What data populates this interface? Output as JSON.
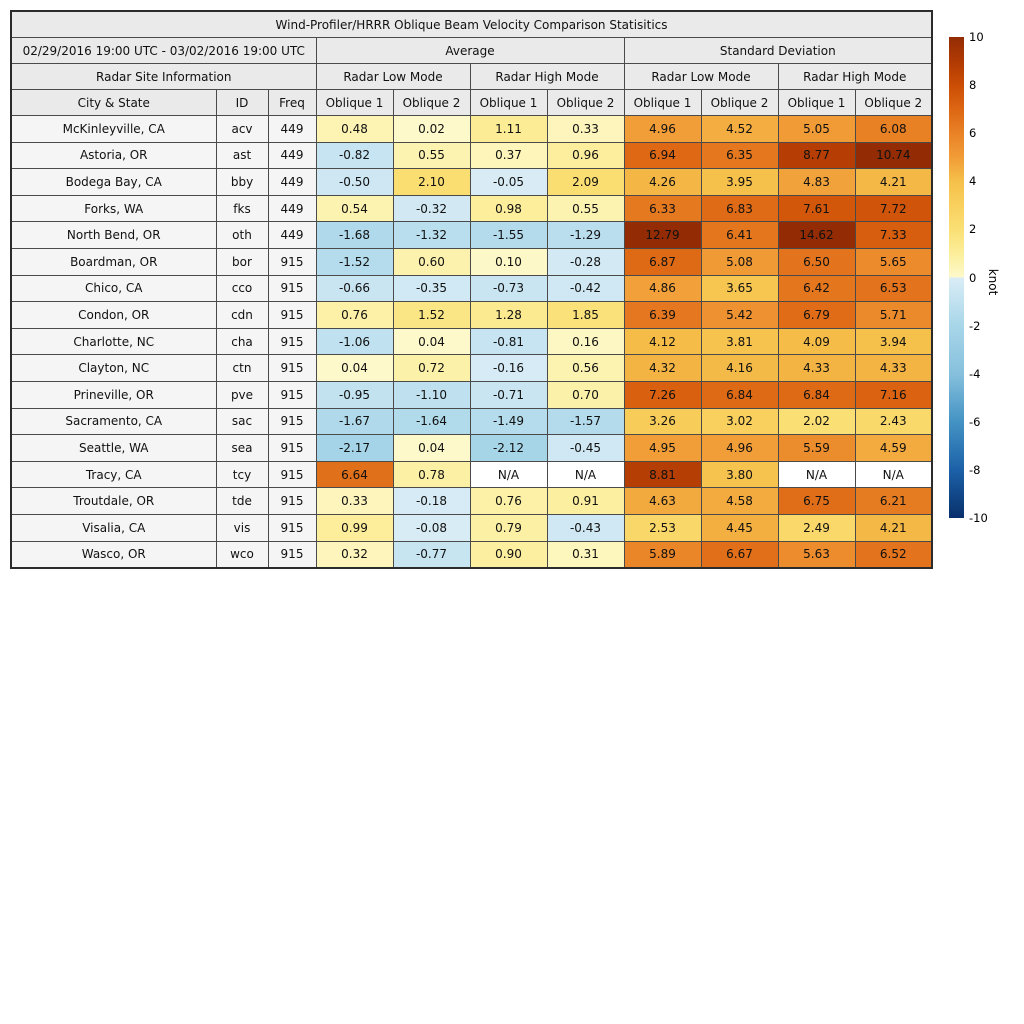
{
  "header": {
    "title": "Wind-Profiler/HRRR Oblique Beam Velocity Comparison Statisitics",
    "date_range": "02/29/2016 19:00 UTC - 03/02/2016 19:00 UTC",
    "average_label": "Average",
    "std_label": "Standard Deviation",
    "site_info_label": "Radar Site Information",
    "mode_headers": [
      "Radar Low Mode",
      "Radar High Mode",
      "Radar Low Mode",
      "Radar High Mode"
    ],
    "city_label": "City & State",
    "id_label": "ID",
    "freq_label": "Freq",
    "oblique_labels": [
      "Oblique 1",
      "Oblique 2"
    ]
  },
  "chart_data": {
    "type": "heatmap",
    "title": "Wind-Profiler/HRRR Oblique Beam Velocity Comparison Statisitics",
    "date_range": "02/29/2016 19:00 UTC - 03/02/2016 19:00 UTC",
    "columns": [
      "Average / Radar Low Mode / Oblique 1",
      "Average / Radar Low Mode / Oblique 2",
      "Average / Radar High Mode / Oblique 1",
      "Average / Radar High Mode / Oblique 2",
      "Standard Deviation / Radar Low Mode / Oblique 1",
      "Standard Deviation / Radar Low Mode / Oblique 2",
      "Standard Deviation / Radar High Mode / Oblique 1",
      "Standard Deviation / Radar High Mode / Oblique 2"
    ],
    "rows": [
      {
        "city": "McKinleyville, CA",
        "id": "acv",
        "freq": "449",
        "values": [
          0.48,
          0.02,
          1.11,
          0.33,
          4.96,
          4.52,
          5.05,
          6.08
        ]
      },
      {
        "city": "Astoria, OR",
        "id": "ast",
        "freq": "449",
        "values": [
          -0.82,
          0.55,
          0.37,
          0.96,
          6.94,
          6.35,
          8.77,
          10.74
        ]
      },
      {
        "city": "Bodega Bay, CA",
        "id": "bby",
        "freq": "449",
        "values": [
          -0.5,
          2.1,
          -0.05,
          2.09,
          4.26,
          3.95,
          4.83,
          4.21
        ]
      },
      {
        "city": "Forks, WA",
        "id": "fks",
        "freq": "449",
        "values": [
          0.54,
          -0.32,
          0.98,
          0.55,
          6.33,
          6.83,
          7.61,
          7.72
        ]
      },
      {
        "city": "North Bend, OR",
        "id": "oth",
        "freq": "449",
        "values": [
          -1.68,
          -1.32,
          -1.55,
          -1.29,
          12.79,
          6.41,
          14.62,
          7.33
        ]
      },
      {
        "city": "Boardman, OR",
        "id": "bor",
        "freq": "915",
        "values": [
          -1.52,
          0.6,
          0.1,
          -0.28,
          6.87,
          5.08,
          6.5,
          5.65
        ]
      },
      {
        "city": "Chico, CA",
        "id": "cco",
        "freq": "915",
        "values": [
          -0.66,
          -0.35,
          -0.73,
          -0.42,
          4.86,
          3.65,
          6.42,
          6.53
        ]
      },
      {
        "city": "Condon, OR",
        "id": "cdn",
        "freq": "915",
        "values": [
          0.76,
          1.52,
          1.28,
          1.85,
          6.39,
          5.42,
          6.79,
          5.71
        ]
      },
      {
        "city": "Charlotte, NC",
        "id": "cha",
        "freq": "915",
        "values": [
          -1.06,
          0.04,
          -0.81,
          0.16,
          4.12,
          3.81,
          4.09,
          3.94
        ]
      },
      {
        "city": "Clayton, NC",
        "id": "ctn",
        "freq": "915",
        "values": [
          0.04,
          0.72,
          -0.16,
          0.56,
          4.32,
          4.16,
          4.33,
          4.33
        ]
      },
      {
        "city": "Prineville, OR",
        "id": "pve",
        "freq": "915",
        "values": [
          -0.95,
          -1.1,
          -0.71,
          0.7,
          7.26,
          6.84,
          6.84,
          7.16
        ]
      },
      {
        "city": "Sacramento, CA",
        "id": "sac",
        "freq": "915",
        "values": [
          -1.67,
          -1.64,
          -1.49,
          -1.57,
          3.26,
          3.02,
          2.02,
          2.43
        ]
      },
      {
        "city": "Seattle, WA",
        "id": "sea",
        "freq": "915",
        "values": [
          -2.17,
          0.04,
          -2.12,
          -0.45,
          4.95,
          4.96,
          5.59,
          4.59
        ]
      },
      {
        "city": "Tracy, CA",
        "id": "tcy",
        "freq": "915",
        "values": [
          6.64,
          0.78,
          "N/A",
          "N/A",
          8.81,
          3.8,
          "N/A",
          "N/A"
        ]
      },
      {
        "city": "Troutdale, OR",
        "id": "tde",
        "freq": "915",
        "values": [
          0.33,
          -0.18,
          0.76,
          0.91,
          4.63,
          4.58,
          6.75,
          6.21
        ]
      },
      {
        "city": "Visalia, CA",
        "id": "vis",
        "freq": "915",
        "values": [
          0.99,
          -0.08,
          0.79,
          -0.43,
          2.53,
          4.45,
          2.49,
          4.21
        ]
      },
      {
        "city": "Wasco, OR",
        "id": "wco",
        "freq": "915",
        "values": [
          0.32,
          -0.77,
          0.9,
          0.31,
          5.89,
          6.67,
          5.63,
          6.52
        ]
      }
    ],
    "colorbar": {
      "label": "knot",
      "min": -10,
      "max": 10,
      "ticks": [
        10,
        8,
        6,
        4,
        2,
        0,
        -2,
        -4,
        -6,
        -8,
        -10
      ]
    },
    "colormap_stops": [
      [
        -10,
        "#08306b"
      ],
      [
        -8,
        "#1c61a8"
      ],
      [
        -6,
        "#4493c4"
      ],
      [
        -4,
        "#86c0dd"
      ],
      [
        -2,
        "#a8d6e9"
      ],
      [
        -0.001,
        "#daedf6"
      ],
      [
        0,
        "#fdf9cc"
      ],
      [
        1,
        "#fcee9a"
      ],
      [
        2,
        "#fadf74"
      ],
      [
        3,
        "#f9d05e"
      ],
      [
        4,
        "#f5c04a"
      ],
      [
        5,
        "#f19c37"
      ],
      [
        6,
        "#e98226"
      ],
      [
        7,
        "#dd6613"
      ],
      [
        8,
        "#cb4d05"
      ],
      [
        9,
        "#b03a04"
      ],
      [
        10,
        "#932c04"
      ]
    ],
    "na_value": "N/A",
    "na_color": "#ffffff"
  }
}
